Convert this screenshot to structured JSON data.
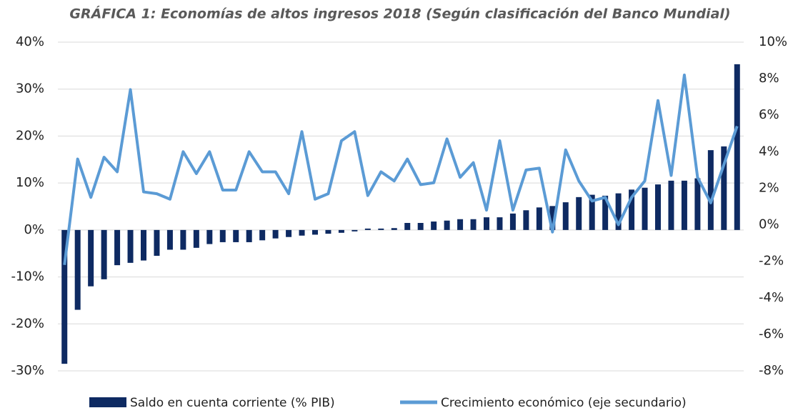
{
  "chart_data": {
    "type": "bar",
    "title": "GRÁFICA 1: Economías de altos ingresos 2018 (Según clasificación del Banco Mundial)",
    "categories": [
      null,
      null,
      null,
      null,
      null,
      null,
      null,
      null,
      null,
      null,
      null,
      null,
      null,
      null,
      null,
      null,
      null,
      null,
      null,
      null,
      null,
      null,
      null,
      null,
      null,
      null,
      null,
      null,
      null,
      null,
      null,
      null,
      null,
      null,
      null,
      null,
      null,
      null,
      null,
      null,
      null,
      null,
      null,
      null,
      null,
      null,
      null,
      null,
      null,
      null,
      null,
      null
    ],
    "series": [
      {
        "name": "Saldo en cuenta corriente (% PIB)",
        "type": "bar",
        "color": "#0e2a62",
        "values": [
          -28.5,
          -17,
          -12,
          -10.5,
          -7.5,
          -7,
          -6.5,
          -5.5,
          -4.2,
          -4.2,
          -3.8,
          -3,
          -2.6,
          -2.6,
          -2.6,
          -2.2,
          -1.8,
          -1.5,
          -1.2,
          -1,
          -0.8,
          -0.6,
          -0.3,
          0.3,
          0.3,
          0.4,
          1.5,
          1.5,
          1.8,
          2,
          2.3,
          2.3,
          2.7,
          2.7,
          3.5,
          4.2,
          4.8,
          5.1,
          5.9,
          7,
          7.5,
          7.3,
          7.8,
          8.6,
          9,
          9.7,
          10.5,
          10.5,
          11,
          17,
          17.8,
          35.3
        ]
      },
      {
        "name": "Crecimiento económico (eje secundario)",
        "type": "line",
        "axis": "y2",
        "color": "#5b9bd5",
        "values": [
          -2.2,
          3.6,
          1.5,
          3.7,
          2.9,
          7.4,
          1.8,
          1.7,
          1.4,
          4.0,
          2.8,
          4.0,
          1.9,
          1.9,
          4.0,
          2.9,
          2.9,
          1.7,
          5.1,
          1.4,
          1.7,
          4.6,
          5.1,
          1.6,
          2.9,
          2.4,
          3.6,
          2.2,
          2.3,
          4.7,
          2.6,
          3.4,
          0.8,
          4.6,
          0.8,
          3.0,
          3.1,
          -0.4,
          4.1,
          2.4,
          1.3,
          1.5,
          0.0,
          1.5,
          2.4,
          6.8,
          2.7,
          8.2,
          2.6,
          1.2,
          3.3,
          5.4
        ]
      }
    ],
    "ylim": [
      -30,
      40
    ],
    "yticks": [
      {
        "value": -30,
        "label": "-30%"
      },
      {
        "value": -20,
        "label": "-20%"
      },
      {
        "value": -10,
        "label": "-10%"
      },
      {
        "value": 0,
        "label": "0%"
      },
      {
        "value": 10,
        "label": "10%"
      },
      {
        "value": 20,
        "label": "20%"
      },
      {
        "value": 30,
        "label": "30%"
      },
      {
        "value": 40,
        "label": "40%"
      }
    ],
    "y2lim": [
      -8,
      10
    ],
    "y2ticks": [
      {
        "value": -8,
        "label": "-8%"
      },
      {
        "value": -6,
        "label": "-6%"
      },
      {
        "value": -4,
        "label": "-4%"
      },
      {
        "value": -2,
        "label": "-2%"
      },
      {
        "value": 0,
        "label": "0%"
      },
      {
        "value": 2,
        "label": "2%"
      },
      {
        "value": 4,
        "label": "4%"
      },
      {
        "value": 6,
        "label": "6%"
      },
      {
        "value": 8,
        "label": "8%"
      },
      {
        "value": 10,
        "label": "10%"
      }
    ],
    "grid": true,
    "legend": "bottom"
  }
}
